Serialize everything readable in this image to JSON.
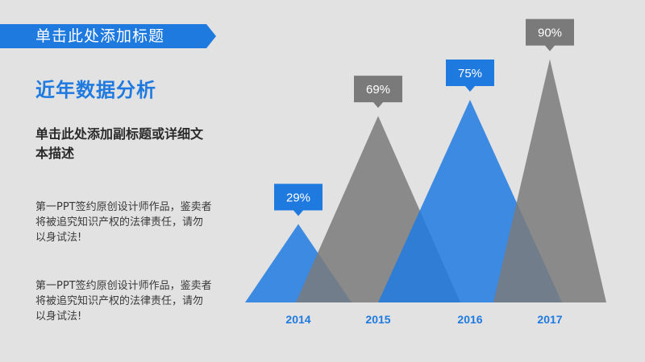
{
  "header": {
    "title": "单击此处添加标题",
    "accent": "#1f7ae0"
  },
  "main": {
    "heading": "近年数据分析",
    "subheading": "单击此处添加副标题或详细文本描述",
    "paragraphs": [
      "第一PPT签约原创设计师作品，鉴卖者将被追究知识产权的法律责任，请勿以身试法!",
      "第一PPT签约原创设计师作品，鉴卖者将被追究知识产权的法律责任，请勿以身试法!"
    ]
  },
  "chart_data": {
    "type": "area",
    "categories": [
      "2014",
      "2015",
      "2016",
      "2017"
    ],
    "values": [
      29,
      69,
      75,
      90
    ],
    "data_labels": [
      "29%",
      "69%",
      "75%",
      "90%"
    ],
    "ylim": [
      0,
      100
    ],
    "colors": [
      "#1f7ae0",
      "#7a7a7a",
      "#1f7ae0",
      "#7a7a7a"
    ],
    "label_colors": [
      "#1f7ae0",
      "#7a7a7a",
      "#1f7ae0",
      "#7a7a7a"
    ],
    "tick_color": "#1f7ae0"
  }
}
